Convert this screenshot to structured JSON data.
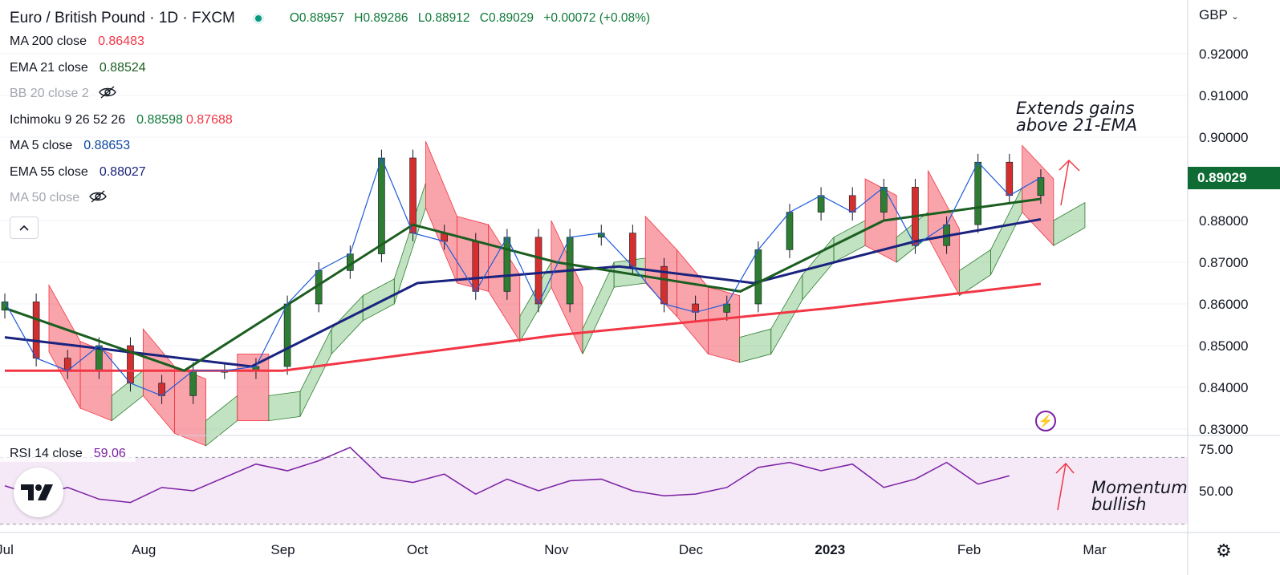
{
  "header": {
    "title": "Euro / British Pound · 1D · FXCM",
    "open": "O0.88957",
    "high": "H0.89286",
    "low": "L0.88912",
    "close": "C0.89029",
    "change": "+0.00072 (+0.08%)"
  },
  "indicators": [
    {
      "label": "MA 200 close",
      "value": "0.86483",
      "value2": "",
      "color": "#f23645",
      "hidden": false
    },
    {
      "label": "EMA 21 close",
      "value": "0.88524",
      "value2": "",
      "color": "#1b5e20",
      "hidden": false
    },
    {
      "label": "BB 20 close 2",
      "value": "",
      "value2": "",
      "color": "#a3a6af",
      "hidden": true
    },
    {
      "label": "Ichimoku 9 26 52 26",
      "value": "0.88598",
      "value2": "0.87688",
      "color": "#0f7a3a",
      "hidden": false
    },
    {
      "label": "MA 5 close",
      "value": "0.88653",
      "value2": "",
      "color": "#0d47a1",
      "hidden": false
    },
    {
      "label": "EMA 55 close",
      "value": "0.88027",
      "value2": "",
      "color": "#1a237e",
      "hidden": false
    },
    {
      "label": "MA 50 close",
      "value": "",
      "value2": "",
      "color": "#a3a6af",
      "hidden": true
    }
  ],
  "rsi": {
    "label": "RSI 14 close",
    "value": "59.06"
  },
  "annotations": {
    "price_line1": "Extends gains",
    "price_line2": "above 21-EMA",
    "rsi_line1": "Momentum",
    "rsi_line2": "bullish"
  },
  "price_axis": {
    "currency": "GBP",
    "last_price": "0.89029",
    "last_price_color": "#0f6b34"
  },
  "icons": [
    "live-status-dot",
    "eye-off-icon",
    "chevron-up-icon",
    "tradingview-logo",
    "flash-icon",
    "gear-icon"
  ],
  "chart_data": {
    "type": "candlestick",
    "instrument": "EUR/GBP",
    "timeframe": "1D",
    "y_axis": {
      "min": 0.83,
      "max": 0.92,
      "ticks": [
        "0.92000",
        "0.91000",
        "0.90000",
        "0.88000",
        "0.87000",
        "0.86000",
        "0.85000",
        "0.84000",
        "0.83000"
      ]
    },
    "rsi_axis": {
      "ticks": [
        "75.00",
        "50.00"
      ],
      "upper_band": 70,
      "lower_band": 30
    },
    "x_axis": {
      "ticks": [
        "Jul",
        "Aug",
        "Sep",
        "Oct",
        "Nov",
        "Dec",
        "2023",
        "Feb",
        "Mar"
      ]
    },
    "close_series": [
      {
        "date": "2022-07-01",
        "close": 0.8605
      },
      {
        "date": "2022-07-08",
        "close": 0.847
      },
      {
        "date": "2022-07-15",
        "close": 0.844
      },
      {
        "date": "2022-07-22",
        "close": 0.85
      },
      {
        "date": "2022-07-29",
        "close": 0.841
      },
      {
        "date": "2022-08-05",
        "close": 0.838
      },
      {
        "date": "2022-08-12",
        "close": 0.844
      },
      {
        "date": "2022-08-19",
        "close": 0.844
      },
      {
        "date": "2022-08-26",
        "close": 0.845
      },
      {
        "date": "2022-09-02",
        "close": 0.86
      },
      {
        "date": "2022-09-09",
        "close": 0.868
      },
      {
        "date": "2022-09-16",
        "close": 0.872
      },
      {
        "date": "2022-09-23",
        "close": 0.895
      },
      {
        "date": "2022-09-30",
        "close": 0.877
      },
      {
        "date": "2022-10-07",
        "close": 0.875
      },
      {
        "date": "2022-10-14",
        "close": 0.863
      },
      {
        "date": "2022-10-21",
        "close": 0.876
      },
      {
        "date": "2022-10-28",
        "close": 0.86
      },
      {
        "date": "2022-11-04",
        "close": 0.876
      },
      {
        "date": "2022-11-11",
        "close": 0.877
      },
      {
        "date": "2022-11-18",
        "close": 0.869
      },
      {
        "date": "2022-11-25",
        "close": 0.86
      },
      {
        "date": "2022-12-02",
        "close": 0.858
      },
      {
        "date": "2022-12-09",
        "close": 0.86
      },
      {
        "date": "2022-12-16",
        "close": 0.873
      },
      {
        "date": "2022-12-23",
        "close": 0.882
      },
      {
        "date": "2022-12-30",
        "close": 0.886
      },
      {
        "date": "2023-01-06",
        "close": 0.882
      },
      {
        "date": "2023-01-13",
        "close": 0.888
      },
      {
        "date": "2023-01-20",
        "close": 0.874
      },
      {
        "date": "2023-01-27",
        "close": 0.879
      },
      {
        "date": "2023-02-03",
        "close": 0.894
      },
      {
        "date": "2023-02-10",
        "close": 0.886
      },
      {
        "date": "2023-02-17",
        "close": 0.8903
      }
    ],
    "ma200": [
      {
        "date": "2022-07-01",
        "value": 0.844
      },
      {
        "date": "2022-09-01",
        "value": 0.844
      },
      {
        "date": "2022-11-01",
        "value": 0.8525
      },
      {
        "date": "2023-01-01",
        "value": 0.859
      },
      {
        "date": "2023-02-17",
        "value": 0.8648
      }
    ],
    "ema55": [
      {
        "date": "2022-07-01",
        "value": 0.852
      },
      {
        "date": "2022-08-25",
        "value": 0.845
      },
      {
        "date": "2022-10-01",
        "value": 0.865
      },
      {
        "date": "2022-11-15",
        "value": 0.869
      },
      {
        "date": "2022-12-15",
        "value": 0.865
      },
      {
        "date": "2023-01-20",
        "value": 0.875
      },
      {
        "date": "2023-02-17",
        "value": 0.8803
      }
    ],
    "ema21": [
      {
        "date": "2022-07-01",
        "value": 0.859
      },
      {
        "date": "2022-08-10",
        "value": 0.844
      },
      {
        "date": "2022-09-30",
        "value": 0.879
      },
      {
        "date": "2022-11-01",
        "value": 0.87
      },
      {
        "date": "2022-12-12",
        "value": 0.863
      },
      {
        "date": "2023-01-13",
        "value": 0.88
      },
      {
        "date": "2023-02-17",
        "value": 0.8852
      }
    ],
    "rsi_series": [
      53,
      47,
      52,
      45,
      43,
      52,
      50,
      58,
      66,
      62,
      68,
      76,
      58,
      55,
      60,
      48,
      57,
      50,
      56,
      57,
      50,
      47,
      48,
      52,
      64,
      67,
      62,
      66,
      52,
      57,
      67,
      54,
      59
    ]
  }
}
